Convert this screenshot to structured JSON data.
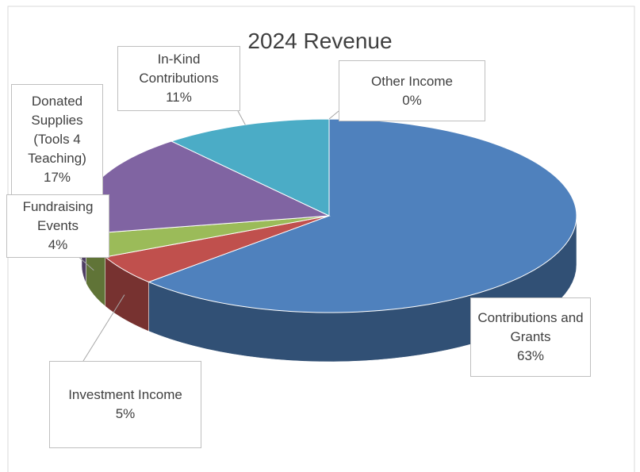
{
  "chart_data": {
    "type": "pie",
    "title": "2024 Revenue",
    "categories": [
      "Contributions and Grants",
      "Investment Income",
      "Fundraising Events",
      "Donated Supplies (Tools 4 Teaching)",
      "In-Kind Contributions",
      "Other Income"
    ],
    "values": [
      63,
      5,
      4,
      17,
      11,
      0
    ],
    "value_labels": [
      "63%",
      "5%",
      "4%",
      "17%",
      "11%",
      "0%"
    ],
    "colors": [
      "#4f81bd",
      "#c0504d",
      "#9bbb59",
      "#8064a2",
      "#4bacc6",
      "#f79646"
    ]
  }
}
